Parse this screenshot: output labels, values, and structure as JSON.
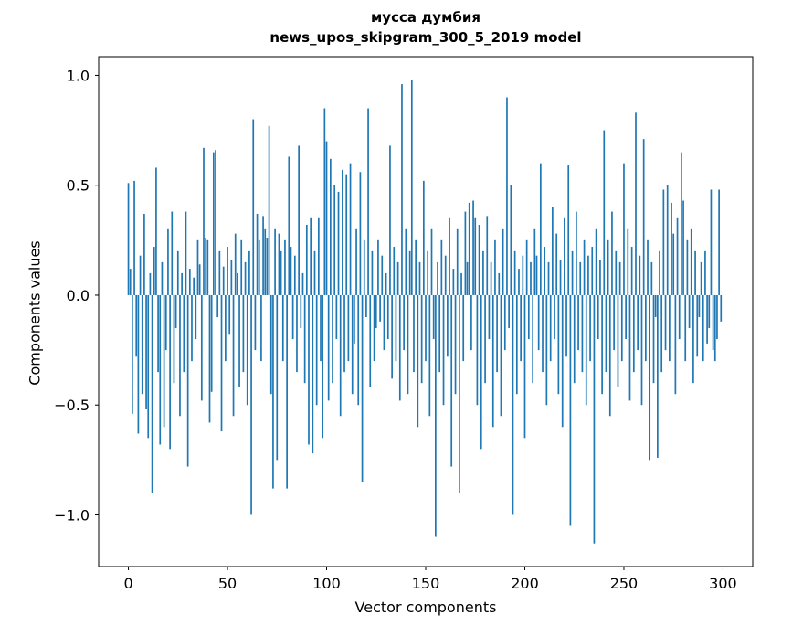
{
  "figure": {
    "title_line1": "мусса думбия",
    "title_line2": "news_upos_skipgram_300_5_2019 model",
    "xlabel": "Vector components",
    "ylabel": "Components values"
  },
  "chart_data": {
    "type": "bar",
    "title": "мусса думбия\nnews_upos_skipgram_300_5_2019 model",
    "xlabel": "Vector components",
    "ylabel": "Components values",
    "bar_color": "#1f77b4",
    "grid": false,
    "legend": "none",
    "xlim": [
      -15,
      315
    ],
    "ylim": [
      -1.235,
      1.085
    ],
    "xticks": [
      0,
      50,
      100,
      150,
      200,
      250,
      300
    ],
    "yticks": [
      1.0,
      0.5,
      0.0,
      -0.5,
      -1.0
    ],
    "values": [
      0.51,
      0.12,
      -0.54,
      0.52,
      -0.28,
      -0.63,
      0.18,
      -0.45,
      0.37,
      -0.52,
      -0.65,
      0.1,
      -0.9,
      0.22,
      0.58,
      -0.35,
      -0.68,
      0.15,
      -0.6,
      -0.25,
      0.3,
      -0.7,
      0.38,
      -0.4,
      -0.15,
      0.2,
      -0.55,
      0.1,
      -0.35,
      0.38,
      -0.78,
      0.12,
      -0.3,
      0.08,
      -0.2,
      0.25,
      0.14,
      -0.48,
      0.67,
      0.26,
      0.25,
      -0.58,
      -0.44,
      0.65,
      0.66,
      -0.1,
      0.2,
      -0.62,
      0.13,
      -0.3,
      0.22,
      -0.18,
      0.16,
      -0.55,
      0.28,
      0.1,
      -0.42,
      0.25,
      -0.35,
      0.15,
      -0.5,
      0.2,
      -1.0,
      0.8,
      -0.25,
      0.37,
      0.25,
      -0.3,
      0.36,
      0.3,
      0.26,
      0.77,
      -0.45,
      -0.88,
      0.3,
      -0.75,
      0.28,
      0.2,
      -0.3,
      0.25,
      -0.88,
      0.63,
      0.22,
      -0.2,
      0.18,
      -0.35,
      0.68,
      -0.15,
      0.1,
      -0.4,
      0.32,
      -0.68,
      0.35,
      -0.72,
      0.2,
      -0.5,
      0.35,
      -0.3,
      -0.65,
      0.85,
      0.7,
      -0.48,
      0.62,
      -0.4,
      0.5,
      -0.2,
      0.47,
      -0.55,
      0.57,
      -0.35,
      0.55,
      -0.3,
      0.6,
      -0.45,
      -0.22,
      0.3,
      -0.5,
      0.56,
      -0.85,
      0.25,
      -0.1,
      0.85,
      -0.42,
      0.2,
      -0.3,
      -0.15,
      0.25,
      -0.12,
      0.18,
      -0.25,
      0.1,
      -0.2,
      0.68,
      -0.38,
      0.22,
      -0.3,
      0.15,
      -0.48,
      0.96,
      -0.25,
      0.3,
      -0.45,
      0.2,
      0.98,
      -0.35,
      0.25,
      -0.6,
      0.15,
      -0.4,
      0.52,
      -0.3,
      0.2,
      -0.55,
      0.3,
      -0.2,
      -1.1,
      0.15,
      -0.35,
      0.25,
      -0.5,
      0.18,
      -0.28,
      0.35,
      -0.78,
      0.12,
      -0.45,
      0.3,
      -0.9,
      0.1,
      -0.3,
      0.38,
      0.15,
      0.42,
      -0.25,
      0.43,
      0.35,
      -0.5,
      0.32,
      -0.7,
      0.2,
      -0.4,
      0.36,
      -0.2,
      0.15,
      -0.6,
      0.25,
      -0.35,
      0.1,
      -0.55,
      0.3,
      -0.25,
      0.9,
      -0.15,
      0.5,
      -1.0,
      0.2,
      -0.45,
      0.12,
      -0.3,
      0.18,
      -0.65,
      0.25,
      -0.2,
      0.15,
      -0.4,
      0.3,
      0.18,
      -0.25,
      0.6,
      -0.35,
      0.22,
      -0.5,
      0.15,
      -0.3,
      0.4,
      -0.2,
      0.28,
      -0.45,
      0.16,
      -0.6,
      0.35,
      -0.28,
      0.59,
      -1.05,
      0.2,
      -0.4,
      0.38,
      -0.25,
      0.15,
      -0.35,
      0.25,
      -0.5,
      0.18,
      -0.3,
      0.22,
      -1.13,
      0.3,
      -0.2,
      0.16,
      -0.45,
      0.75,
      -0.35,
      0.25,
      -0.55,
      0.38,
      -0.25,
      0.2,
      -0.42,
      0.15,
      -0.3,
      0.6,
      -0.2,
      0.3,
      -0.48,
      0.22,
      -0.35,
      0.83,
      -0.25,
      0.18,
      -0.5,
      0.71,
      -0.3,
      0.25,
      -0.75,
      0.15,
      -0.4,
      -0.1,
      -0.74,
      0.2,
      -0.35,
      0.48,
      -0.25,
      0.5,
      -0.3,
      0.42,
      0.28,
      -0.45,
      0.35,
      -0.2,
      0.65,
      0.43,
      -0.3,
      0.25,
      -0.15,
      0.3,
      -0.4,
      0.2,
      -0.28,
      -0.1,
      0.15,
      -0.3,
      0.2,
      -0.22,
      -0.15,
      0.48,
      -0.25,
      -0.3,
      -0.2,
      0.48,
      -0.12
    ]
  }
}
